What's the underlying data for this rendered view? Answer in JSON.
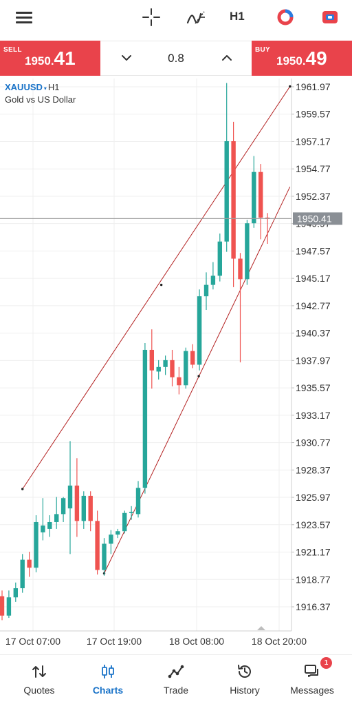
{
  "toolbar": {
    "menu_icon": "hamburger-icon",
    "crosshair_icon": "crosshair-icon",
    "indicators_icon": "indicators-icon",
    "timeframe": "H1",
    "chart_type_icon": "ring-icon",
    "objects_icon": "objects-icon"
  },
  "trade": {
    "sell_label": "SELL",
    "sell_price_small": "1950.",
    "sell_price_big": "41",
    "buy_label": "BUY",
    "buy_price_small": "1950.",
    "buy_price_big": "49",
    "volume": "0.8",
    "sell_color": "#e9434b"
  },
  "symbol": {
    "ticker": "XAUUSD",
    "caret": "▾",
    "timeframe": "H1",
    "description": "Gold vs US Dollar"
  },
  "chart_data": {
    "type": "candlestick",
    "y_ticks": [
      "1961.97",
      "1959.57",
      "1957.17",
      "1954.77",
      "1952.37",
      "1949.97",
      "1947.57",
      "1945.17",
      "1942.77",
      "1940.37",
      "1937.97",
      "1935.57",
      "1933.17",
      "1930.77",
      "1928.37",
      "1925.97",
      "1923.57",
      "1921.17",
      "1918.77",
      "1916.37"
    ],
    "x_ticks": [
      "17 Oct 07:00",
      "17 Oct 19:00",
      "18 Oct 08:00",
      "18 Oct 20:00"
    ],
    "current_price": "1950.41",
    "ylim": [
      1915.0,
      1963.0
    ],
    "up_color": "#26a69a",
    "down_color": "#ef5350",
    "candles": [
      {
        "o": 1917.3,
        "h": 1917.8,
        "l": 1915.2,
        "c": 1915.6
      },
      {
        "o": 1915.6,
        "h": 1917.8,
        "l": 1915.4,
        "c": 1917.2
      },
      {
        "o": 1917.2,
        "h": 1918.5,
        "l": 1916.8,
        "c": 1918.0
      },
      {
        "o": 1918.0,
        "h": 1921.0,
        "l": 1917.6,
        "c": 1920.5
      },
      {
        "o": 1920.5,
        "h": 1921.2,
        "l": 1919.0,
        "c": 1919.8
      },
      {
        "o": 1919.8,
        "h": 1924.4,
        "l": 1919.4,
        "c": 1923.8
      },
      {
        "o": 1922.9,
        "h": 1925.9,
        "l": 1922.2,
        "c": 1923.5
      },
      {
        "o": 1923.2,
        "h": 1924.4,
        "l": 1922.5,
        "c": 1923.8
      },
      {
        "o": 1923.8,
        "h": 1926.0,
        "l": 1923.2,
        "c": 1924.5
      },
      {
        "o": 1924.5,
        "h": 1926.0,
        "l": 1923.8,
        "c": 1925.9
      },
      {
        "o": 1925.0,
        "h": 1930.9,
        "l": 1921.0,
        "c": 1927.0
      },
      {
        "o": 1927.0,
        "h": 1929.4,
        "l": 1922.5,
        "c": 1923.9
      },
      {
        "o": 1923.9,
        "h": 1926.5,
        "l": 1923.2,
        "c": 1926.1
      },
      {
        "o": 1926.1,
        "h": 1926.5,
        "l": 1923.0,
        "c": 1923.9
      },
      {
        "o": 1923.9,
        "h": 1924.8,
        "l": 1919.2,
        "c": 1919.6
      },
      {
        "o": 1919.6,
        "h": 1922.4,
        "l": 1919.1,
        "c": 1921.9
      },
      {
        "o": 1921.9,
        "h": 1923.1,
        "l": 1921.0,
        "c": 1922.7
      },
      {
        "o": 1922.7,
        "h": 1923.2,
        "l": 1922.4,
        "c": 1923.0
      },
      {
        "o": 1923.0,
        "h": 1924.8,
        "l": 1922.8,
        "c": 1924.6
      },
      {
        "o": 1924.6,
        "h": 1925.2,
        "l": 1924.0,
        "c": 1924.7
      },
      {
        "o": 1924.5,
        "h": 1927.4,
        "l": 1924.2,
        "c": 1926.8
      },
      {
        "o": 1926.8,
        "h": 1939.5,
        "l": 1926.3,
        "c": 1938.9
      },
      {
        "o": 1938.9,
        "h": 1940.7,
        "l": 1935.5,
        "c": 1937.1
      },
      {
        "o": 1937.0,
        "h": 1938.0,
        "l": 1936.3,
        "c": 1937.4
      },
      {
        "o": 1937.4,
        "h": 1938.4,
        "l": 1936.7,
        "c": 1938.0
      },
      {
        "o": 1938.0,
        "h": 1938.9,
        "l": 1935.7,
        "c": 1936.5
      },
      {
        "o": 1936.5,
        "h": 1937.4,
        "l": 1935.0,
        "c": 1935.8
      },
      {
        "o": 1935.8,
        "h": 1939.1,
        "l": 1935.5,
        "c": 1938.8
      },
      {
        "o": 1938.8,
        "h": 1939.4,
        "l": 1937.3,
        "c": 1937.6
      },
      {
        "o": 1937.6,
        "h": 1944.2,
        "l": 1937.1,
        "c": 1943.6
      },
      {
        "o": 1943.6,
        "h": 1945.7,
        "l": 1942.4,
        "c": 1944.6
      },
      {
        "o": 1944.6,
        "h": 1946.6,
        "l": 1944.2,
        "c": 1945.4
      },
      {
        "o": 1945.4,
        "h": 1949.1,
        "l": 1944.9,
        "c": 1948.4
      },
      {
        "o": 1948.4,
        "h": 1962.3,
        "l": 1947.5,
        "c": 1957.2
      },
      {
        "o": 1957.2,
        "h": 1958.9,
        "l": 1944.4,
        "c": 1946.9
      },
      {
        "o": 1946.9,
        "h": 1947.4,
        "l": 1937.8,
        "c": 1945.1
      },
      {
        "o": 1945.1,
        "h": 1950.3,
        "l": 1944.6,
        "c": 1950.0
      },
      {
        "o": 1950.0,
        "h": 1955.9,
        "l": 1949.6,
        "c": 1954.5
      },
      {
        "o": 1954.5,
        "h": 1955.2,
        "l": 1948.6,
        "c": 1950.5
      },
      {
        "o": 1950.5,
        "h": 1950.9,
        "l": 1948.2,
        "c": 1950.4
      }
    ],
    "channel": {
      "upper_line": {
        "points": [
          [
            3,
            1926.7
          ],
          [
            42.3,
            1962.0
          ]
        ]
      },
      "lower_line": {
        "points": [
          [
            15,
            1919.3
          ],
          [
            42.3,
            1953.2
          ]
        ]
      },
      "mid_anchor_upper": [
        23.4,
        1944.6
      ],
      "mid_anchor_lower": [
        28.9,
        1936.6
      ]
    }
  },
  "nav": {
    "items": [
      {
        "label": "Quotes",
        "icon": "quotes-icon"
      },
      {
        "label": "Charts",
        "icon": "charts-icon"
      },
      {
        "label": "Trade",
        "icon": "trade-icon"
      },
      {
        "label": "History",
        "icon": "history-icon"
      },
      {
        "label": "Messages",
        "icon": "messages-icon",
        "badge": "1"
      }
    ]
  }
}
